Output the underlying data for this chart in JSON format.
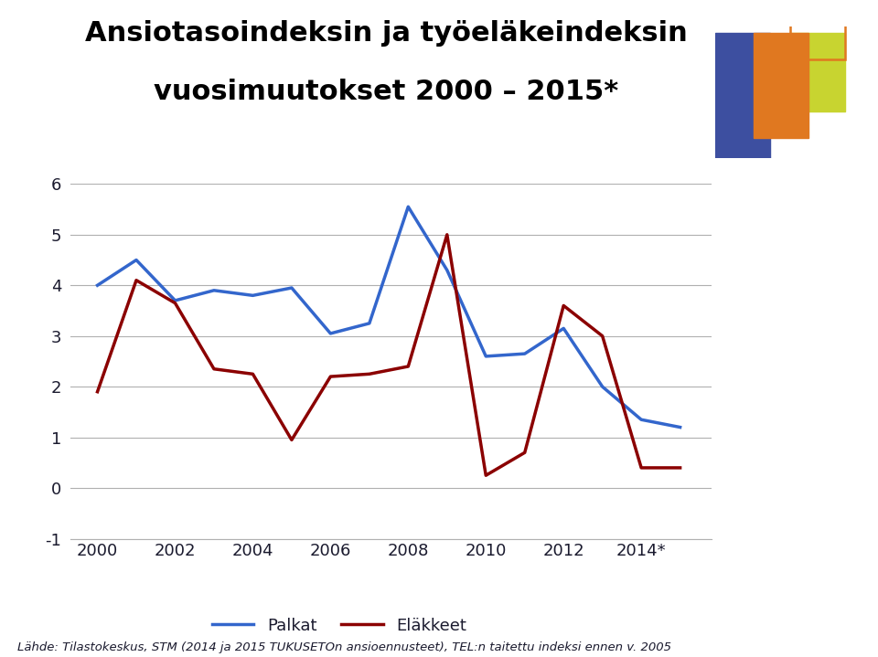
{
  "title_line1": "Ansiotasoindeksin ja työeläkeindeksin",
  "title_line2": "vuosimuutokset 2000 – 2015*",
  "years": [
    2000,
    2001,
    2002,
    2003,
    2004,
    2005,
    2006,
    2007,
    2008,
    2009,
    2010,
    2011,
    2012,
    2013,
    2014,
    2015
  ],
  "palkat": [
    4.0,
    4.5,
    3.7,
    3.9,
    3.8,
    3.95,
    3.05,
    3.25,
    5.55,
    4.3,
    2.6,
    2.65,
    3.15,
    2.0,
    1.35,
    1.2
  ],
  "elakkeet": [
    1.9,
    4.1,
    3.65,
    2.35,
    2.25,
    0.95,
    2.2,
    2.25,
    2.4,
    5.0,
    0.25,
    0.7,
    3.6,
    3.0,
    0.4,
    0.4
  ],
  "palkat_color": "#3366CC",
  "elakkeet_color": "#8B0000",
  "ylim": [
    -1,
    6
  ],
  "yticks": [
    -1,
    0,
    1,
    2,
    3,
    4,
    5,
    6
  ],
  "x_tick_years": [
    2000,
    2002,
    2004,
    2006,
    2008,
    2010,
    2012,
    2014
  ],
  "x_tick_labels": [
    "2000",
    "2002",
    "2004",
    "2006",
    "2008",
    "2010",
    "2012",
    "2014*"
  ],
  "source_text": "Lähde: Tilastokeskus, STM (2014 ja 2015 TUKUSETOn ansioennusteet), TEL:n taitettu indeksi ennen v. 2005",
  "legend_palkat": "Palkat",
  "legend_elakkeet": "Eläkkeet",
  "bg_color": "#ffffff",
  "grid_color": "#b0b0b0",
  "title_color": "#000000",
  "axis_label_color": "#1a1a2e",
  "logo_blue": "#3d4fa0",
  "logo_orange": "#e07820",
  "logo_green": "#c8d430",
  "xlim_left": 1999.3,
  "xlim_right": 2015.8
}
